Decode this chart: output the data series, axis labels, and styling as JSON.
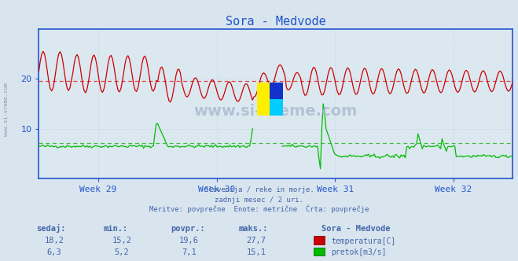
{
  "title": "Sora - Medvode",
  "bg_color": "#d8e4ee",
  "plot_bg_color": "#dce8f0",
  "grid_color": "#b8c8d8",
  "axis_color": "#2255cc",
  "text_color": "#4466aa",
  "watermark": "www.si-vreme.com",
  "subtitle_lines": [
    "Slovenija / reke in morje.",
    "zadnji mesec / 2 uri.",
    "Meritve: povprečne  Enote: metrične  Črta: povprečje"
  ],
  "x_tick_labels": [
    "Week 29",
    "Week 30",
    "Week 31",
    "Week 32"
  ],
  "ylim_min": 0,
  "ylim_max": 30,
  "y_ticks": [
    10,
    20
  ],
  "avg_temp": 19.6,
  "avg_flow": 7.1,
  "table_headers": [
    "sedaj:",
    "min.:",
    "povpr.:",
    "maks.:"
  ],
  "table_temp": [
    "18,2",
    "15,2",
    "19,6",
    "27,7"
  ],
  "table_flow": [
    "6,3",
    "5,2",
    "7,1",
    "15,1"
  ],
  "station_label": "Sora - Medvode",
  "legend_temp": "temperatura[C]",
  "legend_flow": "pretok[m3/s]",
  "temp_color": "#cc0000",
  "flow_color": "#00bb00",
  "avg_line_color": "#dd4444",
  "avg_flow_line_color": "#44bb44",
  "title_color": "#2255cc",
  "n_points": 336,
  "n_weeks": 4
}
